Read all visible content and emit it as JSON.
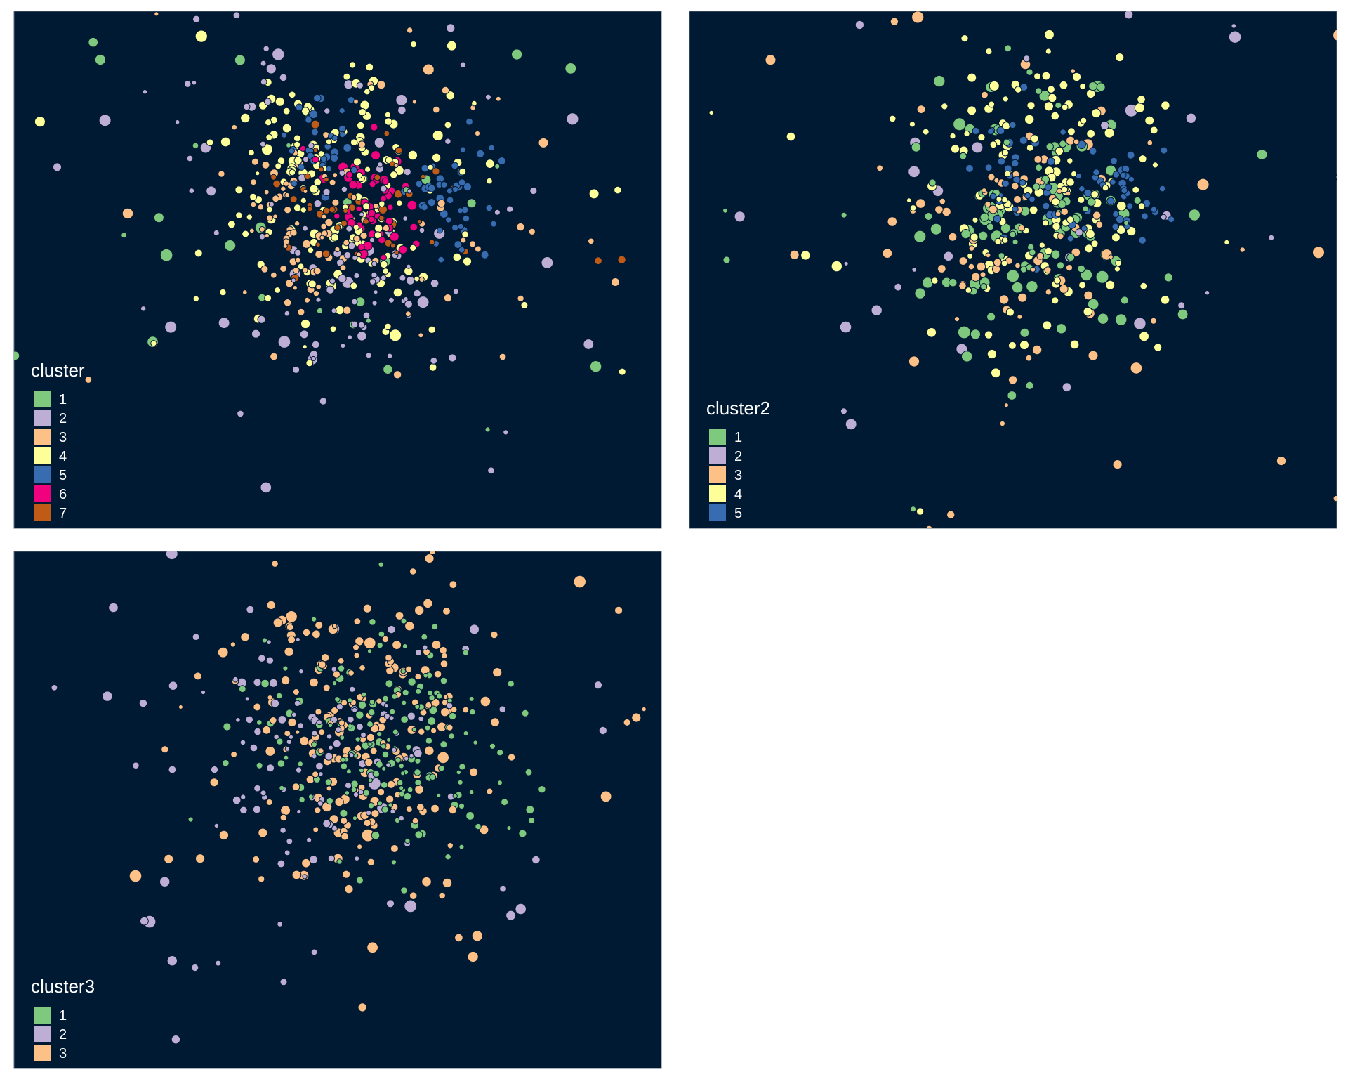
{
  "palette": {
    "1": "#7fc97f",
    "2": "#beaed4",
    "3": "#fdc086",
    "4": "#ffff99",
    "5": "#386cb0",
    "6": "#f0027f",
    "7": "#bf5b17"
  },
  "background": "#011a33",
  "chart_data": [
    {
      "type": "scatter",
      "panel": "top-left",
      "legend_title": "cluster",
      "legend_position": "bottom-left",
      "legend": [
        {
          "label": "1",
          "color": "#7fc97f"
        },
        {
          "label": "2",
          "color": "#beaed4"
        },
        {
          "label": "3",
          "color": "#fdc086"
        },
        {
          "label": "4",
          "color": "#ffff99"
        },
        {
          "label": "5",
          "color": "#386cb0"
        },
        {
          "label": "6",
          "color": "#f0027f"
        },
        {
          "label": "7",
          "color": "#bf5b17"
        }
      ],
      "regions": [
        {
          "c": 4,
          "x": 0.5,
          "y": 0.33,
          "sx": 0.09,
          "sy": 0.14,
          "n": 170,
          "r": [
            4,
            7
          ]
        },
        {
          "c": 5,
          "x": 0.48,
          "y": 0.26,
          "sx": 0.03,
          "sy": 0.05,
          "n": 32,
          "r": [
            4,
            6
          ]
        },
        {
          "c": 5,
          "x": 0.67,
          "y": 0.36,
          "sx": 0.035,
          "sy": 0.06,
          "n": 45,
          "r": [
            4,
            6
          ]
        },
        {
          "c": 6,
          "x": 0.55,
          "y": 0.37,
          "sx": 0.035,
          "sy": 0.05,
          "n": 55,
          "r": [
            4,
            7
          ]
        },
        {
          "c": 7,
          "x": 0.54,
          "y": 0.37,
          "sx": 0.07,
          "sy": 0.06,
          "n": 45,
          "r": [
            3,
            6
          ]
        },
        {
          "c": 3,
          "x": 0.44,
          "y": 0.42,
          "sx": 0.05,
          "sy": 0.08,
          "n": 70,
          "r": [
            3,
            6
          ]
        },
        {
          "c": 2,
          "x": 0.53,
          "y": 0.53,
          "sx": 0.06,
          "sy": 0.08,
          "n": 55,
          "r": [
            3,
            6
          ]
        },
        {
          "c": 2,
          "x": 0.5,
          "y": 0.2,
          "sx": 0.1,
          "sy": 0.13,
          "n": 25,
          "r": [
            3,
            6
          ]
        },
        {
          "c": 3,
          "x": 0.6,
          "y": 0.35,
          "sx": 0.14,
          "sy": 0.16,
          "n": 30,
          "r": [
            3,
            6
          ]
        },
        {
          "c": 2,
          "x": 0.5,
          "y": 0.4,
          "sx": 0.22,
          "sy": 0.25,
          "n": 55,
          "r": [
            3,
            9
          ]
        },
        {
          "c": 1,
          "x": 0.5,
          "y": 0.4,
          "sx": 0.32,
          "sy": 0.28,
          "n": 38,
          "r": [
            3,
            9
          ]
        },
        {
          "c": 4,
          "x": 0.5,
          "y": 0.4,
          "sx": 0.25,
          "sy": 0.25,
          "n": 22,
          "r": [
            3,
            9
          ]
        },
        {
          "c": 3,
          "x": 0.5,
          "y": 0.4,
          "sx": 0.28,
          "sy": 0.28,
          "n": 20,
          "r": [
            3,
            8
          ]
        },
        {
          "c": 7,
          "x": 0.91,
          "y": 0.48,
          "sx": 0.01,
          "sy": 0.01,
          "n": 2,
          "r": [
            5,
            6
          ]
        }
      ]
    },
    {
      "type": "scatter",
      "panel": "top-right",
      "legend_title": "cluster2",
      "legend_position": "bottom-left",
      "legend": [
        {
          "label": "1",
          "color": "#7fc97f"
        },
        {
          "label": "2",
          "color": "#beaed4"
        },
        {
          "label": "3",
          "color": "#fdc086"
        },
        {
          "label": "4",
          "color": "#ffff99"
        },
        {
          "label": "5",
          "color": "#386cb0"
        }
      ],
      "regions": [
        {
          "c": 4,
          "x": 0.55,
          "y": 0.35,
          "sx": 0.1,
          "sy": 0.15,
          "n": 150,
          "r": [
            4,
            7
          ]
        },
        {
          "c": 1,
          "x": 0.53,
          "y": 0.38,
          "sx": 0.09,
          "sy": 0.15,
          "n": 110,
          "r": [
            4,
            9
          ]
        },
        {
          "c": 5,
          "x": 0.52,
          "y": 0.3,
          "sx": 0.04,
          "sy": 0.07,
          "n": 40,
          "r": [
            4,
            6
          ]
        },
        {
          "c": 5,
          "x": 0.67,
          "y": 0.37,
          "sx": 0.035,
          "sy": 0.06,
          "n": 40,
          "r": [
            4,
            6
          ]
        },
        {
          "c": 3,
          "x": 0.5,
          "y": 0.45,
          "sx": 0.08,
          "sy": 0.12,
          "n": 80,
          "r": [
            3,
            7
          ]
        },
        {
          "c": 3,
          "x": 0.5,
          "y": 0.4,
          "sx": 0.3,
          "sy": 0.28,
          "n": 30,
          "r": [
            3,
            9
          ]
        },
        {
          "c": 2,
          "x": 0.5,
          "y": 0.4,
          "sx": 0.32,
          "sy": 0.28,
          "n": 40,
          "r": [
            3,
            9
          ]
        },
        {
          "c": 1,
          "x": 0.5,
          "y": 0.4,
          "sx": 0.3,
          "sy": 0.28,
          "n": 20,
          "r": [
            3,
            9
          ]
        },
        {
          "c": 4,
          "x": 0.5,
          "y": 0.4,
          "sx": 0.28,
          "sy": 0.28,
          "n": 18,
          "r": [
            3,
            8
          ]
        }
      ]
    },
    {
      "type": "scatter",
      "panel": "bottom-left",
      "legend_title": "cluster3",
      "legend_position": "bottom-left",
      "legend": [
        {
          "label": "1",
          "color": "#7fc97f"
        },
        {
          "label": "2",
          "color": "#beaed4"
        },
        {
          "label": "3",
          "color": "#fdc086"
        }
      ],
      "regions": [
        {
          "c": 1,
          "x": 0.58,
          "y": 0.37,
          "sx": 0.09,
          "sy": 0.11,
          "n": 180,
          "r": [
            3,
            6
          ]
        },
        {
          "c": 3,
          "x": 0.53,
          "y": 0.36,
          "sx": 0.09,
          "sy": 0.16,
          "n": 200,
          "r": [
            4,
            7
          ]
        },
        {
          "c": 2,
          "x": 0.47,
          "y": 0.42,
          "sx": 0.08,
          "sy": 0.12,
          "n": 100,
          "r": [
            3,
            6
          ]
        },
        {
          "c": 3,
          "x": 0.5,
          "y": 0.4,
          "sx": 0.3,
          "sy": 0.28,
          "n": 45,
          "r": [
            3,
            9
          ]
        },
        {
          "c": 2,
          "x": 0.5,
          "y": 0.4,
          "sx": 0.3,
          "sy": 0.28,
          "n": 50,
          "r": [
            3,
            9
          ]
        },
        {
          "c": 1,
          "x": 0.8,
          "y": 0.48,
          "sx": 0.05,
          "sy": 0.05,
          "n": 4,
          "r": [
            4,
            6
          ]
        }
      ]
    }
  ]
}
